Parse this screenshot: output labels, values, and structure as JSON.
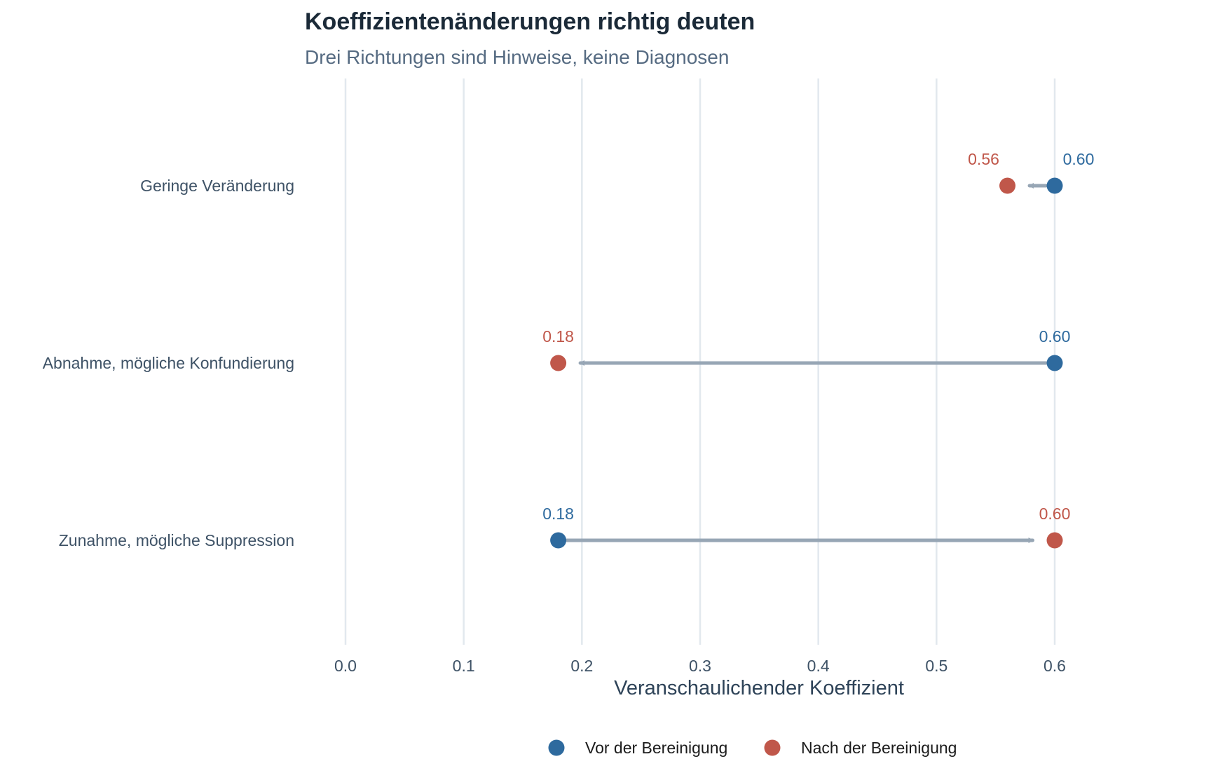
{
  "title": "Koeffizientenänderungen richtig deuten",
  "subtitle": "Drei Richtungen sind Hinweise, keine Diagnosen",
  "colors": {
    "before": "#2e6a9e",
    "after": "#c0574a",
    "arrow": "#97a6b5",
    "grid": "#e2e8ee"
  },
  "chart_data": {
    "type": "dumbbell",
    "title": "Koeffizientenänderungen richtig deuten",
    "subtitle": "Drei Richtungen sind Hinweise, keine Diagnosen",
    "xlabel": "Veranschaulichender Koeffizient",
    "ylabel": "",
    "xlim": [
      0.0,
      0.6
    ],
    "x_ticks": [
      "0.0",
      "0.1",
      "0.2",
      "0.3",
      "0.4",
      "0.5",
      "0.6"
    ],
    "grid": "vertical",
    "legend_position": "bottom",
    "series": [
      {
        "name": "Vor der Bereinigung",
        "key": "before"
      },
      {
        "name": "Nach der Bereinigung",
        "key": "after"
      }
    ],
    "rows": [
      {
        "category": "Geringe Veränderung",
        "before": 0.6,
        "after": 0.56,
        "before_label": "0.60",
        "after_label": "0.56"
      },
      {
        "category": "Abnahme, mögliche Konfundierung",
        "before": 0.6,
        "after": 0.18,
        "before_label": "0.60",
        "after_label": "0.18"
      },
      {
        "category": "Zunahme, mögliche Suppression",
        "before": 0.18,
        "after": 0.6,
        "before_label": "0.18",
        "after_label": "0.60"
      }
    ]
  }
}
